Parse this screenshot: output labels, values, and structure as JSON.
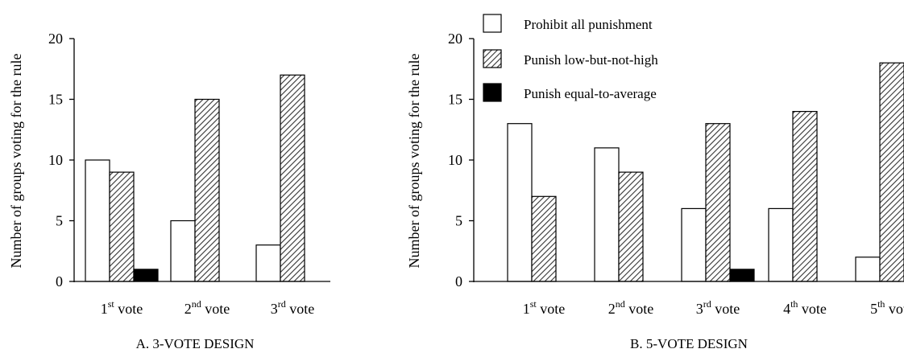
{
  "chart_data": [
    {
      "type": "bar",
      "panel_title": "A. 3-VOTE DESIGN",
      "ylabel": "Number of groups voting for the rule",
      "ylim": [
        0,
        20
      ],
      "yticks": [
        "0",
        "5",
        "10",
        "15",
        "20"
      ],
      "categories": [
        {
          "num": "1",
          "sup": "st",
          "word": "vote"
        },
        {
          "num": "2",
          "sup": "nd",
          "word": "vote"
        },
        {
          "num": "3",
          "sup": "rd",
          "word": "vote"
        }
      ],
      "series": [
        {
          "name": "Prohibit all punishment",
          "values": [
            10,
            5,
            3
          ]
        },
        {
          "name": "Punish low-but-not-high",
          "values": [
            9,
            15,
            17
          ]
        },
        {
          "name": "Punish equal-to-average",
          "values": [
            1,
            0,
            0
          ]
        }
      ]
    },
    {
      "type": "bar",
      "panel_title": "B. 5-VOTE DESIGN",
      "ylabel": "Number of groups voting for the rule",
      "ylim": [
        0,
        20
      ],
      "yticks": [
        "0",
        "5",
        "10",
        "15",
        "20"
      ],
      "categories": [
        {
          "num": "1",
          "sup": "st",
          "word": "vote"
        },
        {
          "num": "2",
          "sup": "nd",
          "word": "vote"
        },
        {
          "num": "3",
          "sup": "rd",
          "word": "vote"
        },
        {
          "num": "4",
          "sup": "th",
          "word": "vote"
        },
        {
          "num": "5",
          "sup": "th",
          "word": "vote"
        }
      ],
      "series": [
        {
          "name": "Prohibit all punishment",
          "values": [
            13,
            11,
            6,
            6,
            2
          ]
        },
        {
          "name": "Punish low-but-not-high",
          "values": [
            7,
            9,
            13,
            14,
            18
          ]
        },
        {
          "name": "Punish equal-to-average",
          "values": [
            0,
            0,
            1,
            0,
            0
          ]
        }
      ],
      "legend": {
        "placement": "top",
        "entries": [
          "Prohibit all punishment",
          "Punish low-but-not-high",
          "Punish equal-to-average"
        ]
      }
    }
  ],
  "styles": {
    "series_fills": [
      "white",
      "diagonal-hatch",
      "black"
    ],
    "colors": {
      "ink": "#000000",
      "background": "#ffffff",
      "hatch": "#333333"
    }
  }
}
